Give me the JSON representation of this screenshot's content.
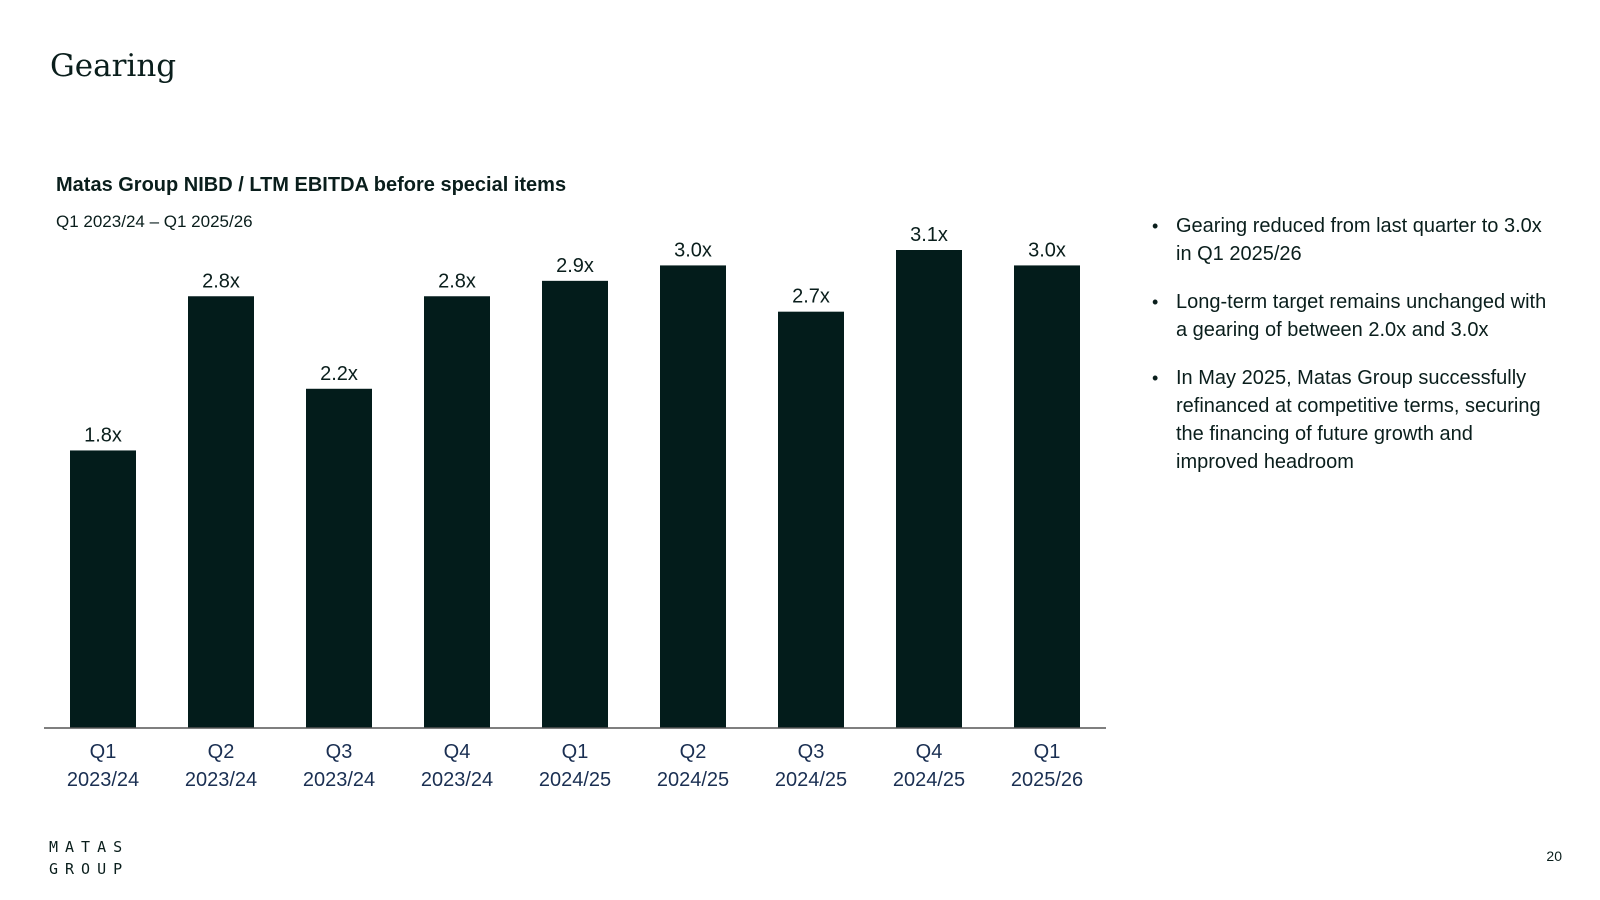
{
  "page": {
    "title": "Gearing",
    "page_number": "20"
  },
  "logo": {
    "line1": "MATAS",
    "line2": "GROUP"
  },
  "chart_data": {
    "type": "bar",
    "title": "Matas Group NIBD / LTM EBITDA before special items",
    "subtitle": "Q1 2023/24 – Q1 2025/26",
    "categories": [
      [
        "Q1",
        "2023/24"
      ],
      [
        "Q2",
        "2023/24"
      ],
      [
        "Q3",
        "2023/24"
      ],
      [
        "Q4",
        "2023/24"
      ],
      [
        "Q1",
        "2024/25"
      ],
      [
        "Q2",
        "2024/25"
      ],
      [
        "Q3",
        "2024/25"
      ],
      [
        "Q4",
        "2024/25"
      ],
      [
        "Q1",
        "2025/26"
      ]
    ],
    "values": [
      1.8,
      2.8,
      2.2,
      2.8,
      2.9,
      3.0,
      2.7,
      3.1,
      3.0
    ],
    "data_labels": [
      "1.8x",
      "2.8x",
      "2.2x",
      "2.8x",
      "2.9x",
      "3.0x",
      "2.7x",
      "3.1x",
      "3.0x"
    ],
    "xlabel": "",
    "ylabel": "",
    "ylim": [
      0,
      3.1
    ],
    "grid": false,
    "bar_color": "#031c1b"
  },
  "bullets": [
    "Gearing reduced from last quarter to 3.0x in Q1 2025/26",
    "Long-term target remains unchanged with a gearing of between 2.0x and 3.0x",
    "In May 2025, Matas Group successfully refinanced at competitive terms, securing the financing of future growth and improved headroom"
  ]
}
